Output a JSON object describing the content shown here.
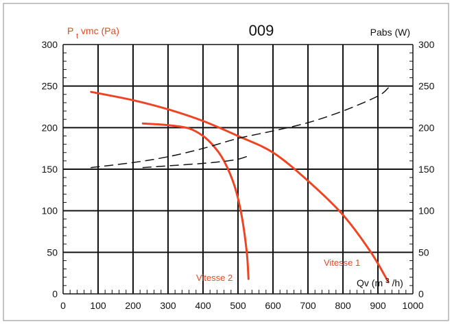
{
  "chart_data": {
    "type": "line",
    "title": "009",
    "ylabel_left_main": "P",
    "ylabel_left_sub": "t",
    "ylabel_left_rest": "vmc (Pa)",
    "ylabel_right": "Pabs (W)",
    "xlabel_main": "Qv (m",
    "xlabel_sup": "3",
    "xlabel_rest": "/h)",
    "xlim": [
      0,
      1000
    ],
    "ylim": [
      0,
      300
    ],
    "x_ticks": [
      "0",
      "100",
      "200",
      "300",
      "400",
      "500",
      "600",
      "700",
      "800",
      "900",
      "1000"
    ],
    "y_ticks_left": [
      "0",
      "50",
      "100",
      "150",
      "200",
      "250",
      "300"
    ],
    "y_ticks_right": [
      "0",
      "50",
      "100",
      "150",
      "200",
      "250",
      "300"
    ],
    "grid": true,
    "colors": {
      "pressure": "#ee4422",
      "power": "#111111",
      "grid": "#111111",
      "label": "#ee4422"
    },
    "series": [
      {
        "name": "Vitesse 1",
        "kind": "pressure",
        "style": "solid",
        "x": [
          80,
          200,
          300,
          400,
          500,
          600,
          700,
          800,
          880,
          930
        ],
        "y": [
          243,
          233,
          222,
          208,
          190,
          170,
          136,
          95,
          50,
          14
        ]
      },
      {
        "name": "Vitesse 2",
        "kind": "pressure",
        "style": "solid",
        "x": [
          228,
          300,
          360,
          400,
          430,
          460,
          490,
          510,
          525,
          530
        ],
        "y": [
          205,
          203,
          199,
          190,
          178,
          160,
          130,
          95,
          50,
          18
        ]
      },
      {
        "name": "",
        "kind": "power",
        "style": "dashed",
        "x": [
          80,
          200,
          300,
          400,
          500,
          600,
          700,
          800,
          900,
          930
        ],
        "y": [
          152,
          158,
          165,
          175,
          187,
          196,
          206,
          220,
          238,
          248
        ]
      },
      {
        "name": "",
        "kind": "power",
        "style": "dashed",
        "x": [
          228,
          300,
          400,
          450,
          500,
          530
        ],
        "y": [
          152,
          154,
          157,
          159,
          162,
          166
        ]
      }
    ],
    "annotations": [
      "Vitesse 1",
      "Vitesse 2"
    ]
  }
}
